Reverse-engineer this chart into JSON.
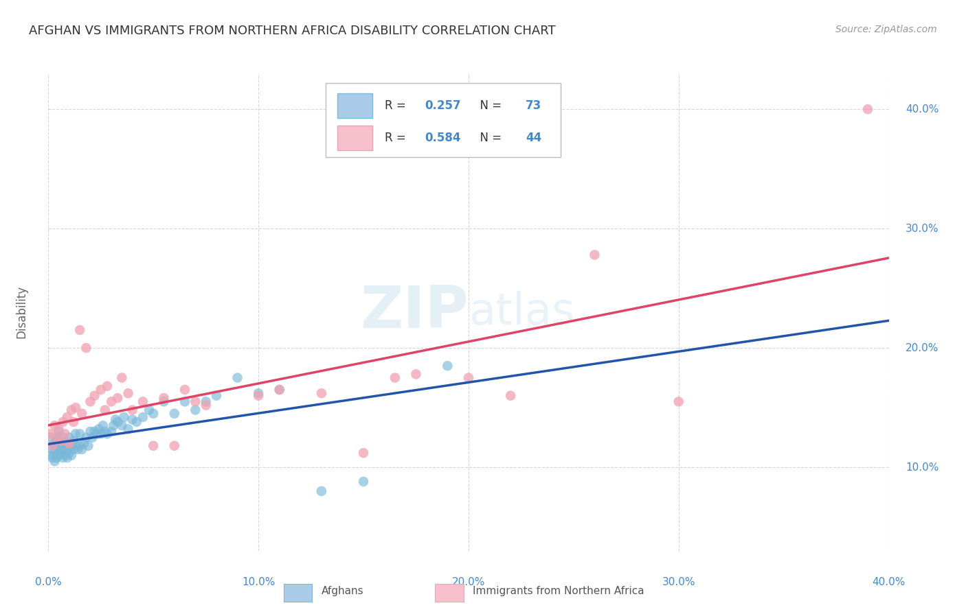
{
  "title": "AFGHAN VS IMMIGRANTS FROM NORTHERN AFRICA DISABILITY CORRELATION CHART",
  "source": "Source: ZipAtlas.com",
  "ylabel": "Disability",
  "xmin": 0.0,
  "xmax": 0.4,
  "ymin": 0.03,
  "ymax": 0.43,
  "xticks": [
    0.0,
    0.1,
    0.2,
    0.3,
    0.4
  ],
  "yticks": [
    0.1,
    0.2,
    0.3,
    0.4
  ],
  "ytick_labels_right": [
    "10.0%",
    "20.0%",
    "30.0%",
    "40.0%"
  ],
  "xtick_labels": [
    "0.0%",
    "10.0%",
    "20.0%",
    "30.0%",
    "40.0%"
  ],
  "background_color": "#ffffff",
  "grid_color": "#cccccc",
  "watermark": "ZIPatlas",
  "blue_color": "#7ab8d9",
  "pink_color": "#f0a0b0",
  "blue_line_color": "#2255aa",
  "pink_line_color": "#dd4466",
  "blue_fill": "#aacce8",
  "pink_fill": "#f8c0cc",
  "r_blue": 0.257,
  "n_blue": 73,
  "r_pink": 0.584,
  "n_pink": 44,
  "legend_label_blue": "Afghans",
  "legend_label_pink": "Immigrants from Northern Africa",
  "title_color": "#333333",
  "axis_color": "#4488cc",
  "blue_scatter_x": [
    0.001,
    0.001,
    0.002,
    0.002,
    0.002,
    0.003,
    0.003,
    0.003,
    0.004,
    0.004,
    0.004,
    0.005,
    0.005,
    0.005,
    0.005,
    0.006,
    0.006,
    0.007,
    0.007,
    0.007,
    0.008,
    0.008,
    0.009,
    0.009,
    0.01,
    0.01,
    0.01,
    0.011,
    0.011,
    0.012,
    0.012,
    0.013,
    0.013,
    0.014,
    0.015,
    0.015,
    0.016,
    0.017,
    0.018,
    0.019,
    0.02,
    0.021,
    0.022,
    0.023,
    0.024,
    0.025,
    0.026,
    0.027,
    0.028,
    0.03,
    0.031,
    0.032,
    0.033,
    0.035,
    0.036,
    0.038,
    0.04,
    0.042,
    0.045,
    0.048,
    0.05,
    0.055,
    0.06,
    0.065,
    0.07,
    0.075,
    0.08,
    0.09,
    0.1,
    0.11,
    0.13,
    0.15,
    0.19
  ],
  "blue_scatter_y": [
    0.11,
    0.125,
    0.115,
    0.108,
    0.118,
    0.112,
    0.12,
    0.105,
    0.108,
    0.118,
    0.125,
    0.11,
    0.115,
    0.122,
    0.13,
    0.112,
    0.12,
    0.108,
    0.115,
    0.125,
    0.11,
    0.118,
    0.108,
    0.115,
    0.112,
    0.118,
    0.125,
    0.11,
    0.118,
    0.115,
    0.122,
    0.118,
    0.128,
    0.115,
    0.118,
    0.128,
    0.115,
    0.12,
    0.125,
    0.118,
    0.13,
    0.125,
    0.13,
    0.128,
    0.132,
    0.128,
    0.135,
    0.13,
    0.128,
    0.13,
    0.135,
    0.14,
    0.138,
    0.135,
    0.142,
    0.132,
    0.14,
    0.138,
    0.142,
    0.148,
    0.145,
    0.155,
    0.145,
    0.155,
    0.148,
    0.155,
    0.16,
    0.175,
    0.162,
    0.165,
    0.08,
    0.088,
    0.185
  ],
  "pink_scatter_x": [
    0.001,
    0.002,
    0.003,
    0.004,
    0.005,
    0.006,
    0.007,
    0.008,
    0.009,
    0.01,
    0.011,
    0.012,
    0.013,
    0.015,
    0.016,
    0.018,
    0.02,
    0.022,
    0.025,
    0.027,
    0.028,
    0.03,
    0.033,
    0.035,
    0.038,
    0.04,
    0.045,
    0.05,
    0.055,
    0.06,
    0.065,
    0.07,
    0.075,
    0.1,
    0.11,
    0.13,
    0.15,
    0.165,
    0.175,
    0.2,
    0.22,
    0.26,
    0.3,
    0.39
  ],
  "pink_scatter_y": [
    0.128,
    0.118,
    0.135,
    0.125,
    0.132,
    0.122,
    0.138,
    0.128,
    0.142,
    0.12,
    0.148,
    0.138,
    0.15,
    0.215,
    0.145,
    0.2,
    0.155,
    0.16,
    0.165,
    0.148,
    0.168,
    0.155,
    0.158,
    0.175,
    0.162,
    0.148,
    0.155,
    0.118,
    0.158,
    0.118,
    0.165,
    0.155,
    0.152,
    0.16,
    0.165,
    0.162,
    0.112,
    0.175,
    0.178,
    0.175,
    0.16,
    0.278,
    0.155,
    0.4
  ]
}
